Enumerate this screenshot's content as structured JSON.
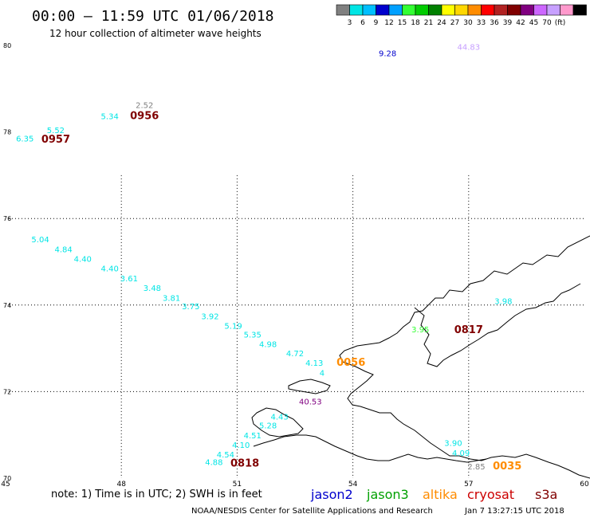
{
  "header": {
    "title": "00:00 – 11:59 UTC 01/06/2018",
    "subtitle": "12 hour collection of altimeter wave heights"
  },
  "legend": {
    "colors": [
      "#808080",
      "#00e5e5",
      "#00bfff",
      "#0000cd",
      "#00a0ff",
      "#33ff33",
      "#00cc00",
      "#008000",
      "#ffff00",
      "#ffd700",
      "#ff8c00",
      "#ff0000",
      "#b22222",
      "#800000",
      "#800080",
      "#cc66ff",
      "#c7a0ff",
      "#ff99cc",
      "#000000"
    ],
    "labels": [
      "3",
      "6",
      "9",
      "12",
      "15",
      "18",
      "21",
      "24",
      "27",
      "30",
      "33",
      "36",
      "39",
      "42",
      "45",
      "70",
      "(ft)"
    ]
  },
  "axes": {
    "lat_ticks": [
      "80",
      "78",
      "76",
      "74",
      "72",
      "70"
    ],
    "lon_ticks": [
      "45",
      "48",
      "51",
      "54",
      "57",
      "60"
    ]
  },
  "observations": [
    {
      "text": "9.28",
      "color": "#0000cd",
      "lon": 54.9,
      "lat": 79.75
    },
    {
      "text": "44.83",
      "color": "#c7a0ff",
      "lon": 57.0,
      "lat": 79.9
    },
    {
      "text": "2.52",
      "color": "#808080",
      "lon": 48.6,
      "lat": 78.55
    },
    {
      "text": "0956",
      "color": "#800000",
      "lon": 48.6,
      "lat": 78.3,
      "kind": "time"
    },
    {
      "text": "5.34",
      "color": "#00e5e5",
      "lon": 47.7,
      "lat": 78.3
    },
    {
      "text": "5.52",
      "color": "#00e5e5",
      "lon": 46.3,
      "lat": 77.97
    },
    {
      "text": "6.35",
      "color": "#00e5e5",
      "lon": 45.5,
      "lat": 77.78
    },
    {
      "text": "0957",
      "color": "#800000",
      "lon": 46.3,
      "lat": 77.75,
      "kind": "time"
    },
    {
      "text": "5.04",
      "color": "#00e5e5",
      "lon": 45.9,
      "lat": 75.45
    },
    {
      "text": "4.84",
      "color": "#00e5e5",
      "lon": 46.5,
      "lat": 75.22
    },
    {
      "text": "4.40",
      "color": "#00e5e5",
      "lon": 47.0,
      "lat": 75.0
    },
    {
      "text": "4.40",
      "color": "#00e5e5",
      "lon": 47.7,
      "lat": 74.78
    },
    {
      "text": "3.61",
      "color": "#00e5e5",
      "lon": 48.2,
      "lat": 74.55
    },
    {
      "text": "3.48",
      "color": "#00e5e5",
      "lon": 48.8,
      "lat": 74.33
    },
    {
      "text": "3.81",
      "color": "#00e5e5",
      "lon": 49.3,
      "lat": 74.1
    },
    {
      "text": "3.75",
      "color": "#00e5e5",
      "lon": 49.8,
      "lat": 73.9
    },
    {
      "text": "3.92",
      "color": "#00e5e5",
      "lon": 50.3,
      "lat": 73.67
    },
    {
      "text": "5.19",
      "color": "#00e5e5",
      "lon": 50.9,
      "lat": 73.45
    },
    {
      "text": "5.35",
      "color": "#00e5e5",
      "lon": 51.4,
      "lat": 73.25
    },
    {
      "text": "4.98",
      "color": "#00e5e5",
      "lon": 51.8,
      "lat": 73.03
    },
    {
      "text": "4.72",
      "color": "#00e5e5",
      "lon": 52.5,
      "lat": 72.82
    },
    {
      "text": "4.13",
      "color": "#00e5e5",
      "lon": 53.0,
      "lat": 72.6
    },
    {
      "text": "0056",
      "color": "#ff8c00",
      "lon": 53.95,
      "lat": 72.6,
      "kind": "time"
    },
    {
      "text": "4",
      "color": "#00e5e5",
      "lon": 53.2,
      "lat": 72.37
    },
    {
      "text": "40.53",
      "color": "#800080",
      "lon": 52.9,
      "lat": 71.7
    },
    {
      "text": "4.43",
      "color": "#00e5e5",
      "lon": 52.1,
      "lat": 71.35
    },
    {
      "text": "5.28",
      "color": "#00e5e5",
      "lon": 51.8,
      "lat": 71.15
    },
    {
      "text": "4.51",
      "color": "#00e5e5",
      "lon": 51.4,
      "lat": 70.92
    },
    {
      "text": "4.10",
      "color": "#00e5e5",
      "lon": 51.1,
      "lat": 70.7
    },
    {
      "text": "4.54",
      "color": "#00e5e5",
      "lon": 50.7,
      "lat": 70.48
    },
    {
      "text": "4.88",
      "color": "#00e5e5",
      "lon": 50.4,
      "lat": 70.3
    },
    {
      "text": "0818",
      "color": "#800000",
      "lon": 51.2,
      "lat": 70.27,
      "kind": "time"
    },
    {
      "text": "3.95",
      "color": "#33ff33",
      "lon": 55.75,
      "lat": 73.37
    },
    {
      "text": "0817",
      "color": "#800000",
      "lon": 57.0,
      "lat": 73.35,
      "kind": "time"
    },
    {
      "text": "3.98",
      "color": "#00e5e5",
      "lon": 57.9,
      "lat": 74.02
    },
    {
      "text": "3.90",
      "color": "#00e5e5",
      "lon": 56.6,
      "lat": 70.75
    },
    {
      "text": "4.09",
      "color": "#00e5e5",
      "lon": 56.8,
      "lat": 70.52
    },
    {
      "text": "2.85",
      "color": "#808080",
      "lon": 57.2,
      "lat": 70.2
    },
    {
      "text": "0035",
      "color": "#ff8c00",
      "lon": 58.0,
      "lat": 70.2,
      "kind": "time"
    }
  ],
  "footer": {
    "note": "note: 1) Time is in UTC; 2) SWH is in feet",
    "satellites": [
      {
        "name": "jason2",
        "color": "#0000cd"
      },
      {
        "name": "jason3",
        "color": "#00a000"
      },
      {
        "name": "altika",
        "color": "#ff8c00"
      },
      {
        "name": "cryosat",
        "color": "#cc0000"
      },
      {
        "name": "s3a",
        "color": "#800000"
      }
    ],
    "credit": "NOAA/NESDIS Center for Satellite Applications and Research",
    "timestamp": "Jan  7 13:27:15 UTC 2018"
  }
}
